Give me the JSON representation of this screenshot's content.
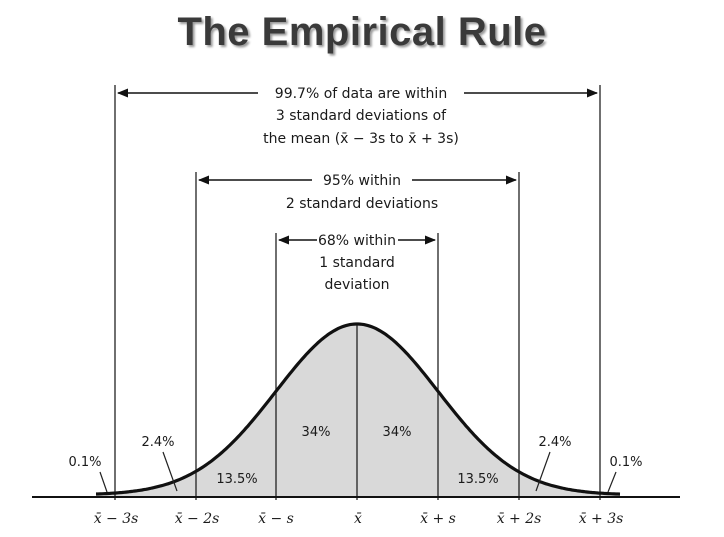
{
  "title": "The Empirical Rule",
  "brackets": {
    "three_sd": {
      "line1": "99.7% of data are within",
      "line2": "3 standard deviations of",
      "line3": "the mean (x̄ − 3s to x̄ + 3s)"
    },
    "two_sd": {
      "line1": "95% within",
      "line2": "2 standard deviations"
    },
    "one_sd": {
      "line1": "68% within",
      "line2": "1 standard",
      "line3": "deviation"
    }
  },
  "regions": {
    "center_left": "34%",
    "center_right": "34%",
    "mid_left": "13.5%",
    "mid_right": "13.5%",
    "outer_left": "2.4%",
    "outer_right": "2.4%",
    "tail_left": "0.1%",
    "tail_right": "0.1%"
  },
  "axis_labels": {
    "m3": "x̄ − 3s",
    "m2": "x̄ − 2s",
    "m1": "x̄ − s",
    "mean": "x̄",
    "p1": "x̄ + s",
    "p2": "x̄ + 2s",
    "p3": "x̄ + 3s"
  },
  "colors": {
    "fill": "#d9d9d9",
    "line": "#111111"
  }
}
